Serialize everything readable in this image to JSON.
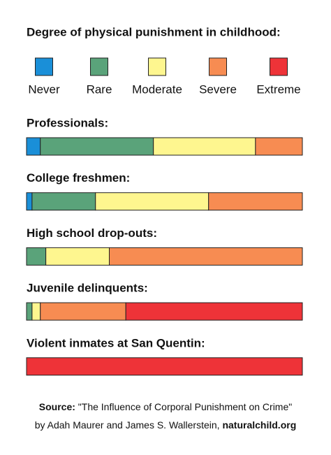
{
  "chart_data": {
    "type": "stacked-bar",
    "title": "Degree of physical punishment in childhood:",
    "categories": [
      "Professionals:",
      "College freshmen:",
      "High school drop-outs:",
      "Juvenile delinquents:",
      "Violent inmates at San Quentin:"
    ],
    "series": [
      {
        "name": "Never",
        "color": "#1a8fd8",
        "values": [
          5,
          2,
          0,
          0,
          0
        ]
      },
      {
        "name": "Rare",
        "color": "#5aa37a",
        "values": [
          41,
          23,
          7,
          2,
          0
        ]
      },
      {
        "name": "Moderate",
        "color": "#fef68f",
        "values": [
          37,
          41,
          23,
          3,
          0
        ]
      },
      {
        "name": "Severe",
        "color": "#f78c52",
        "values": [
          17,
          34,
          70,
          31,
          0
        ]
      },
      {
        "name": "Extreme",
        "color": "#ee3338",
        "values": [
          0,
          0,
          0,
          64,
          100
        ]
      }
    ],
    "xlim": [
      0,
      100
    ],
    "source_label": "Source:",
    "source_title": "\"The Influence of Corporal Punishment on Crime\"",
    "source_authors": "by Adah Maurer and James S. Wallerstein,",
    "source_site": "naturalchild.org"
  }
}
